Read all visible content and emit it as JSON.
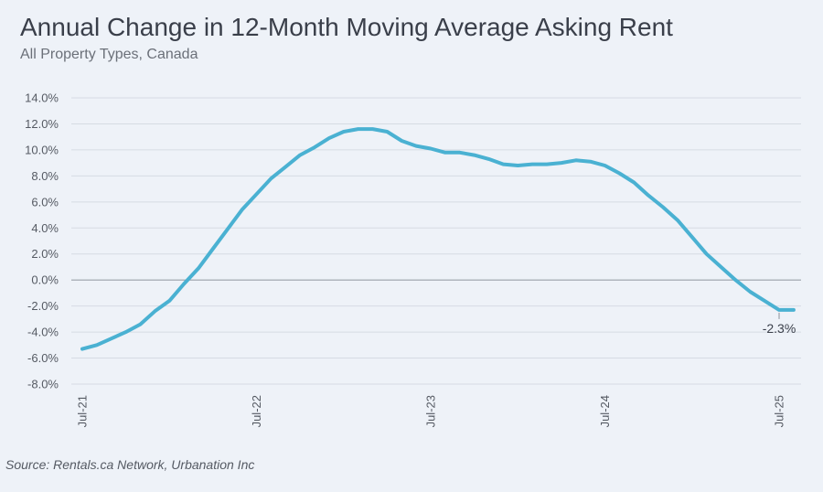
{
  "header": {
    "title": "Annual Change in 12-Month Moving Average Asking Rent",
    "subtitle": "All Property Types, Canada"
  },
  "footer": {
    "source": "Source: Rentals.ca Network, Urbanation Inc"
  },
  "colors": {
    "line": "#4ab1d2",
    "grid": "#d6dbe3",
    "zero_line": "#9aa0a8",
    "background": "#eef2f8"
  },
  "chart_data": {
    "type": "line",
    "title": "Annual Change in 12-Month Moving Average Asking Rent",
    "subtitle": "All Property Types, Canada",
    "xlabel": "",
    "ylabel": "",
    "ylim": [
      -8.0,
      14.0
    ],
    "yticks": [
      "14.0%",
      "12.0%",
      "10.0%",
      "8.0%",
      "6.0%",
      "4.0%",
      "2.0%",
      "0.0%",
      "-2.0%",
      "-4.0%",
      "-6.0%",
      "-8.0%"
    ],
    "ytick_values": [
      14,
      12,
      10,
      8,
      6,
      4,
      2,
      0,
      -2,
      -4,
      -6,
      -8
    ],
    "xticks": [
      "Jul-21",
      "Jul-22",
      "Jul-23",
      "Jul-24",
      "Jul-25"
    ],
    "xtick_months": [
      0,
      12,
      24,
      36,
      48
    ],
    "grid": "horizontal",
    "legend": "none",
    "annotation": {
      "label": "-2.3%",
      "month": 49,
      "value": -2.3
    },
    "series": [
      {
        "months": [
          0,
          1,
          2,
          3,
          4,
          5,
          6,
          7,
          8,
          9,
          10,
          11,
          12,
          13,
          14,
          15,
          16,
          17,
          18,
          19,
          20,
          21,
          22,
          23,
          24,
          25,
          26,
          27,
          28,
          29,
          30,
          31,
          32,
          33,
          34,
          35,
          36,
          37,
          38,
          39,
          40,
          41,
          42,
          43,
          44,
          45,
          46,
          47,
          48,
          49
        ],
        "values": [
          -5.3,
          -5.0,
          -4.5,
          -4.0,
          -3.4,
          -2.4,
          -1.6,
          -0.3,
          0.9,
          2.4,
          3.9,
          5.4,
          6.6,
          7.8,
          8.7,
          9.6,
          10.2,
          10.9,
          11.4,
          11.6,
          11.6,
          11.4,
          10.7,
          10.3,
          10.1,
          9.8,
          9.8,
          9.6,
          9.3,
          8.9,
          8.8,
          8.9,
          8.9,
          9.0,
          9.2,
          9.1,
          8.8,
          8.2,
          7.5,
          6.5,
          5.6,
          4.6,
          3.3,
          2.0,
          1.0,
          0.0,
          -0.9,
          -1.6,
          -2.3,
          -2.3
        ]
      }
    ]
  }
}
